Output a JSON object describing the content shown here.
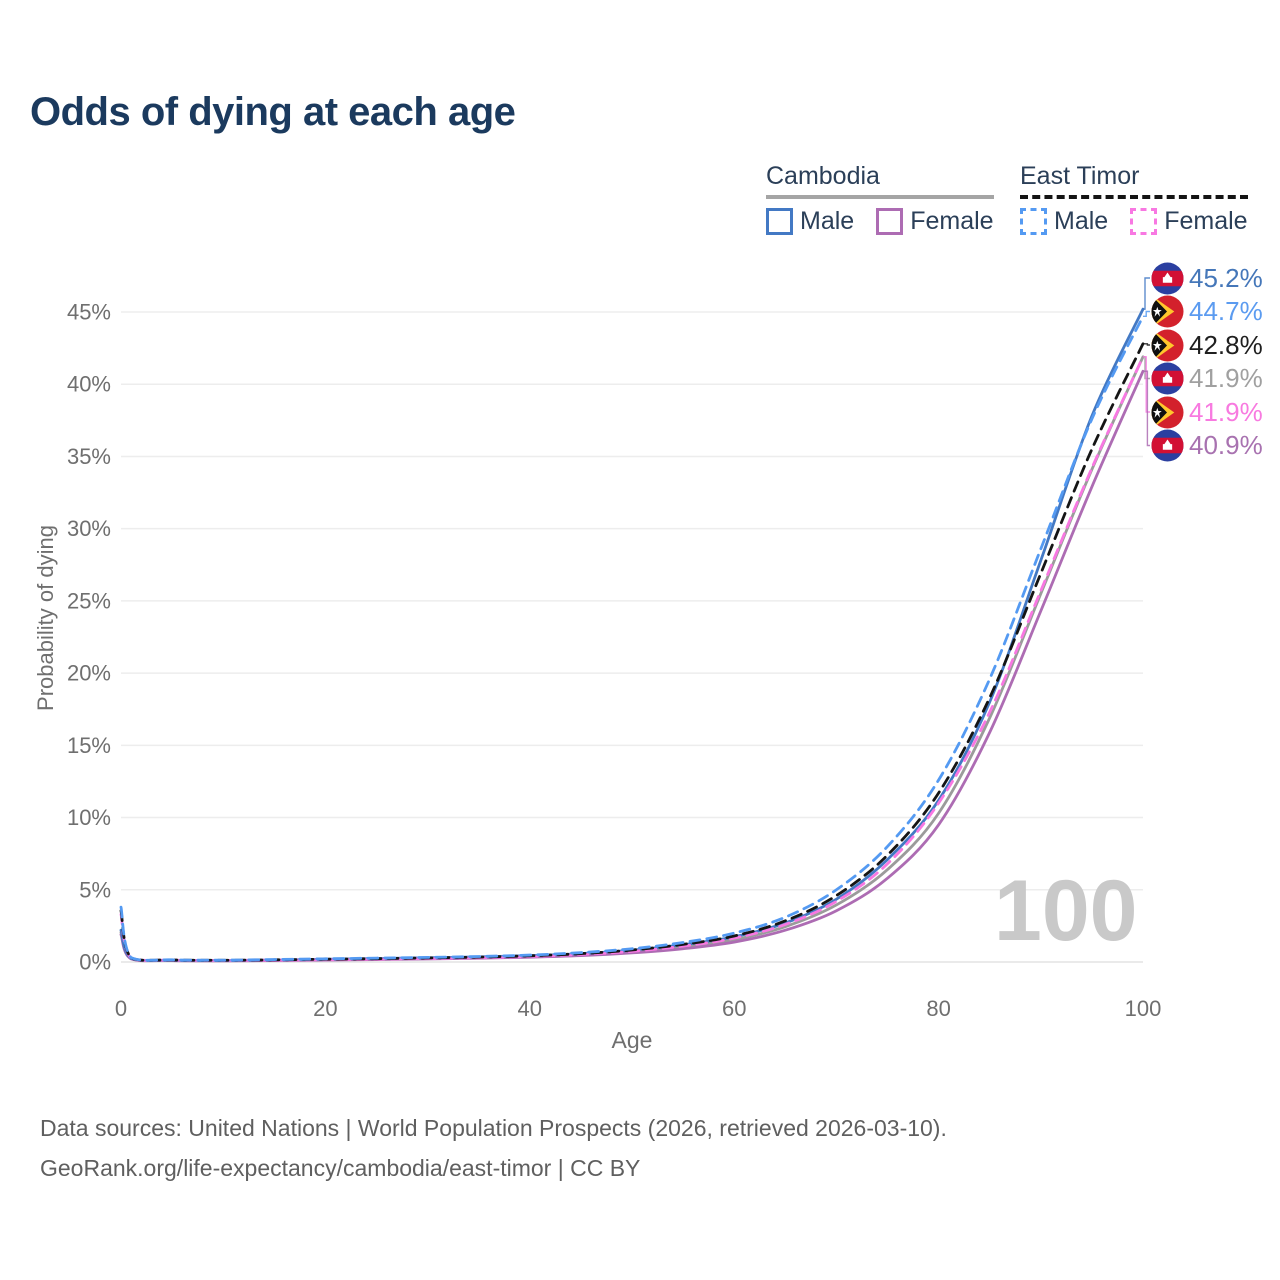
{
  "title": "Odds of dying at each age",
  "watermark": "100",
  "legend": {
    "groups": [
      {
        "label": "Cambodia",
        "underline_style": "solid",
        "underline_color": "#a5a5a5",
        "items": [
          {
            "label": "Male",
            "color": "#4379c4",
            "dash": false
          },
          {
            "label": "Female",
            "color": "#ad6cb3",
            "dash": false
          }
        ]
      },
      {
        "label": "East Timor",
        "underline_style": "dashed",
        "underline_color": "#141414",
        "items": [
          {
            "label": "Male",
            "color": "#549af2",
            "dash": true
          },
          {
            "label": "Female",
            "color": "#f878e2",
            "dash": true
          }
        ]
      }
    ]
  },
  "chart_data": {
    "type": "line",
    "title": "Odds of dying at each age",
    "xlabel": "Age",
    "ylabel": "Probability of dying",
    "xlim": [
      0,
      100
    ],
    "ylim": [
      0,
      47
    ],
    "xticks": [
      0,
      20,
      40,
      60,
      80,
      100
    ],
    "yticks": [
      0,
      5,
      10,
      15,
      20,
      25,
      30,
      35,
      40,
      45
    ],
    "ytick_suffix": "%",
    "grid": "horizontal",
    "legend_position": "top-right",
    "age_counter": "100",
    "x_ages": [
      0,
      1,
      5,
      10,
      15,
      20,
      25,
      30,
      35,
      40,
      45,
      50,
      55,
      60,
      65,
      70,
      75,
      80,
      85,
      90,
      95,
      100
    ],
    "series": [
      {
        "id": "cambodia-total",
        "name": "Cambodia (both sexes)",
        "country": "Cambodia",
        "sex": "total",
        "color": "#9b9b9b",
        "dash": false,
        "values": [
          2.05,
          0.23,
          0.11,
          0.09,
          0.12,
          0.16,
          0.2,
          0.25,
          0.3,
          0.38,
          0.5,
          0.72,
          1.05,
          1.55,
          2.45,
          3.95,
          6.4,
          10.3,
          16.9,
          25.5,
          34.1,
          41.9
        ]
      },
      {
        "id": "cambodia-female",
        "name": "Cambodia Female",
        "country": "Cambodia",
        "sex": "female",
        "color": "#ad6cb3",
        "dash": false,
        "values": [
          1.9,
          0.21,
          0.1,
          0.08,
          0.1,
          0.13,
          0.17,
          0.21,
          0.26,
          0.33,
          0.44,
          0.63,
          0.92,
          1.38,
          2.2,
          3.55,
          5.8,
          9.5,
          15.9,
          24.3,
          32.9,
          40.9
        ]
      },
      {
        "id": "cambodia-male",
        "name": "Cambodia Male",
        "country": "Cambodia",
        "sex": "male",
        "color": "#4379c4",
        "dash": false,
        "values": [
          2.2,
          0.25,
          0.12,
          0.1,
          0.14,
          0.19,
          0.24,
          0.29,
          0.35,
          0.44,
          0.58,
          0.82,
          1.2,
          1.75,
          2.7,
          4.35,
          7.1,
          11.2,
          18.0,
          27.8,
          37.8,
          45.2
        ]
      },
      {
        "id": "east-timor-female",
        "name": "East Timor Female",
        "country": "East Timor",
        "sex": "female",
        "color": "#f878e2",
        "dash": true,
        "values": [
          3.3,
          0.26,
          0.13,
          0.11,
          0.13,
          0.16,
          0.2,
          0.24,
          0.3,
          0.38,
          0.52,
          0.74,
          1.1,
          1.65,
          2.6,
          4.2,
          6.8,
          11.0,
          17.3,
          25.7,
          34.2,
          41.9
        ]
      },
      {
        "id": "east-timor-total",
        "name": "East Timor (both sexes)",
        "country": "East Timor",
        "sex": "total",
        "color": "#151515",
        "dash": true,
        "values": [
          3.55,
          0.28,
          0.14,
          0.12,
          0.15,
          0.19,
          0.23,
          0.28,
          0.34,
          0.43,
          0.58,
          0.83,
          1.22,
          1.8,
          2.85,
          4.6,
          7.4,
          11.7,
          18.3,
          26.9,
          35.5,
          42.8
        ]
      },
      {
        "id": "east-timor-male",
        "name": "East Timor Male",
        "country": "East Timor",
        "sex": "male",
        "color": "#549af2",
        "dash": true,
        "values": [
          3.8,
          0.3,
          0.15,
          0.13,
          0.17,
          0.22,
          0.27,
          0.32,
          0.38,
          0.48,
          0.65,
          0.92,
          1.35,
          2.0,
          3.1,
          5.0,
          8.0,
          12.6,
          19.6,
          28.6,
          37.6,
          44.7
        ]
      }
    ],
    "end_labels": [
      {
        "series": "cambodia-male",
        "flag": "cambodia",
        "text": "45.2%",
        "color": "#4577b9"
      },
      {
        "series": "east-timor-male",
        "flag": "east-timor",
        "text": "44.7%",
        "color": "#5b9bf0"
      },
      {
        "series": "east-timor-total",
        "flag": "east-timor",
        "text": "42.8%",
        "color": "#1f1f1f"
      },
      {
        "series": "cambodia-total",
        "flag": "cambodia",
        "text": "41.9%",
        "color": "#a0a0a0"
      },
      {
        "series": "east-timor-female",
        "flag": "east-timor",
        "text": "41.9%",
        "color": "#f87ae0"
      },
      {
        "series": "cambodia-female",
        "flag": "cambodia",
        "text": "40.9%",
        "color": "#a872b0"
      }
    ]
  },
  "footer": {
    "line1": "Data sources: United Nations | World Population Prospects (2026, retrieved 2026-03-10).",
    "line2": "GeoRank.org/life-expectancy/cambodia/east-timor | CC BY"
  }
}
